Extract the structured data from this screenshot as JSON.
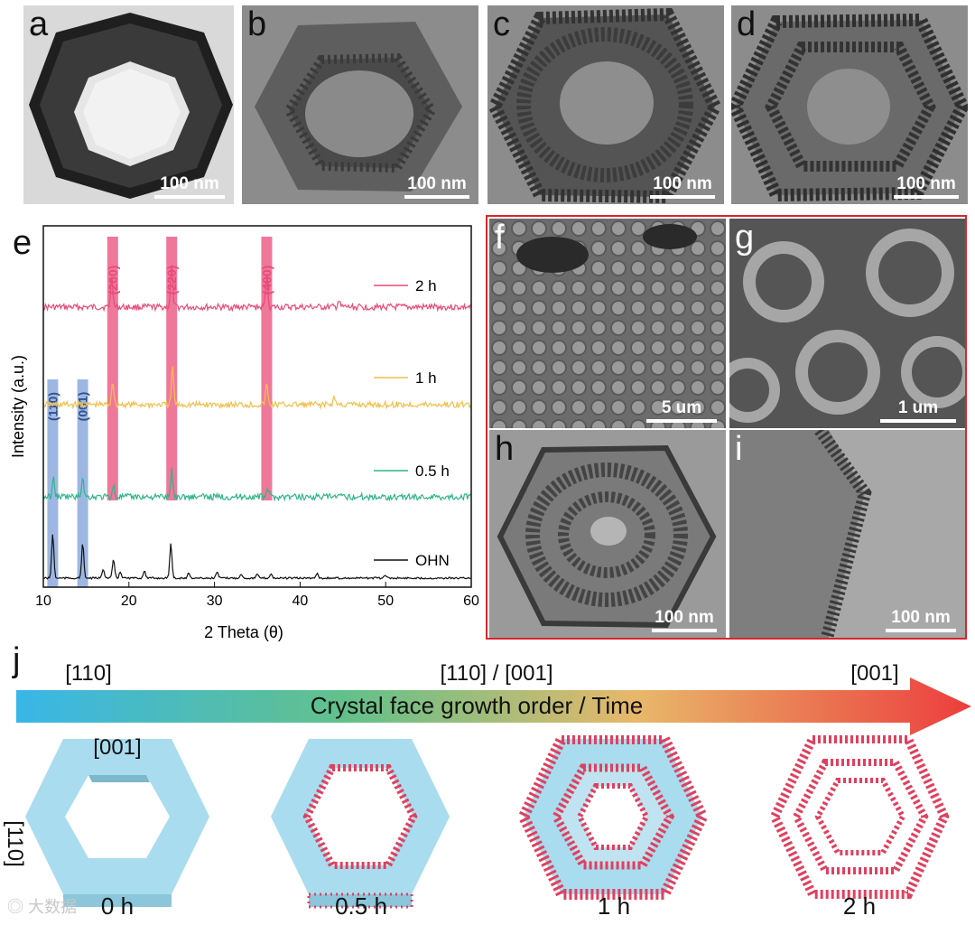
{
  "panels": {
    "a": {
      "label": "a",
      "scale": "100 nm"
    },
    "b": {
      "label": "b",
      "scale": "100 nm"
    },
    "c": {
      "label": "c",
      "scale": "100 nm"
    },
    "d": {
      "label": "d",
      "scale": "100 nm"
    },
    "e": {
      "label": "e"
    },
    "f": {
      "label": "f",
      "scale": "5 um"
    },
    "g": {
      "label": "g",
      "scale": "1 um"
    },
    "h": {
      "label": "h",
      "scale": "100 nm"
    },
    "i": {
      "label": "i",
      "scale": "100 nm"
    },
    "j": {
      "label": "j"
    }
  },
  "colors": {
    "pink": "#e94b78",
    "blue": "#7e9fd8",
    "green": "#2fb58a",
    "yellow": "#f1c04c",
    "black": "#111111",
    "red_border": "#d8262b"
  },
  "chart_data": {
    "type": "line",
    "xlabel": "2 Theta (θ)",
    "ylabel": "Intensity (a.u.)",
    "xlim": [
      10,
      60
    ],
    "xticks": [
      10,
      20,
      30,
      40,
      50,
      60
    ],
    "series": [
      {
        "name": "2 h",
        "color": "#e94b78",
        "peaks": [
          [
            18.0,
            0.5
          ],
          [
            25.0,
            0.65
          ],
          [
            36.1,
            0.5
          ],
          [
            44.5,
            0.1
          ]
        ]
      },
      {
        "name": "1 h",
        "color": "#f1c04c",
        "peaks": [
          [
            18.1,
            0.38
          ],
          [
            25.1,
            0.6
          ],
          [
            36.1,
            0.32
          ],
          [
            44.0,
            0.12
          ]
        ]
      },
      {
        "name": "0.5 h",
        "color": "#2fb58a",
        "peaks": [
          [
            11.2,
            0.3
          ],
          [
            14.6,
            0.33
          ],
          [
            18.2,
            0.18
          ],
          [
            25.0,
            0.42
          ],
          [
            36.2,
            0.15
          ]
        ]
      },
      {
        "name": "OHN",
        "color": "#111111",
        "peaks": [
          [
            11.1,
            0.7
          ],
          [
            14.6,
            0.55
          ],
          [
            17.0,
            0.15
          ],
          [
            18.2,
            0.3
          ],
          [
            19.0,
            0.1
          ],
          [
            21.8,
            0.12
          ],
          [
            24.9,
            0.55
          ],
          [
            27.0,
            0.08
          ],
          [
            30.3,
            0.1
          ],
          [
            33.1,
            0.07
          ],
          [
            35.0,
            0.06
          ],
          [
            36.6,
            0.07
          ],
          [
            42.0,
            0.08
          ],
          [
            50.0,
            0.05
          ]
        ]
      }
    ],
    "highlight_bands": [
      {
        "label": "(110)",
        "x": 11.1,
        "color": "#7e9fd8"
      },
      {
        "label": "(001)",
        "x": 14.6,
        "color": "#7e9fd8"
      },
      {
        "label": "(200)",
        "x": 18.1,
        "color": "#e94b78"
      },
      {
        "label": "(220)",
        "x": 25.0,
        "color": "#e94b78"
      },
      {
        "label": "(400)",
        "x": 36.1,
        "color": "#e94b78"
      }
    ],
    "grid": false,
    "legend": "inline-right"
  },
  "scheme": {
    "arrow_text": "Crystal face growth order / Time",
    "top_labels": [
      "[110]",
      "[110] / [001]",
      "[001]"
    ],
    "face_001": "[001]",
    "face_110": "[110]",
    "times": [
      "0 h",
      "0.5 h",
      "1 h",
      "2 h"
    ]
  },
  "watermark": "大数据"
}
